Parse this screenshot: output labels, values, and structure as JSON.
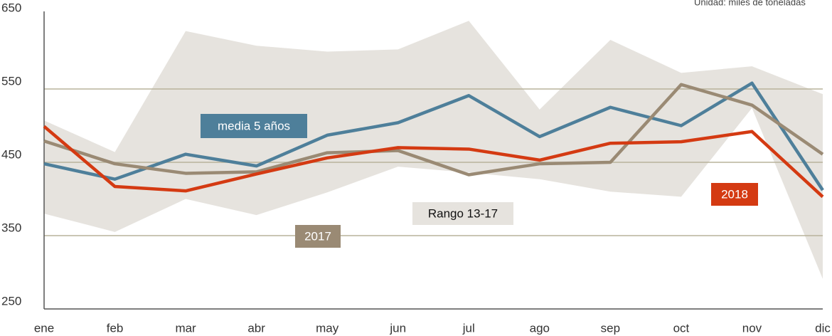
{
  "chart_data": {
    "type": "line",
    "subtitle": "Unidad: miles de toneladas",
    "categories": [
      "ene",
      "feb",
      "mar",
      "abr",
      "may",
      "jun",
      "jul",
      "ago",
      "sep",
      "oct",
      "nov",
      "dic"
    ],
    "range": {
      "name": "Rango 13-17",
      "color": "#e6e3de",
      "upper": [
        507,
        464,
        629,
        609,
        601,
        604,
        643,
        522,
        617,
        572,
        581,
        543
      ],
      "lower": [
        380,
        355,
        400,
        378,
        409,
        444,
        436,
        427,
        410,
        403,
        524,
        291
      ]
    },
    "series": [
      {
        "name": "media 5 años",
        "color": "#4e7f9a",
        "values": [
          448,
          427,
          461,
          445,
          487,
          504,
          541,
          485,
          525,
          500,
          558,
          412
        ]
      },
      {
        "name": "2017",
        "color": "#9a8a74",
        "values": [
          479,
          448,
          435,
          437,
          463,
          466,
          433,
          448,
          450,
          556,
          528,
          461
        ]
      },
      {
        "name": "2018",
        "color": "#d43a12",
        "values": [
          499,
          417,
          411,
          434,
          456,
          470,
          468,
          453,
          476,
          478,
          492,
          403
        ]
      }
    ],
    "ylim": [
      250,
      650
    ],
    "yticks": [
      250,
      350,
      450,
      550,
      650
    ],
    "grid": true
  }
}
